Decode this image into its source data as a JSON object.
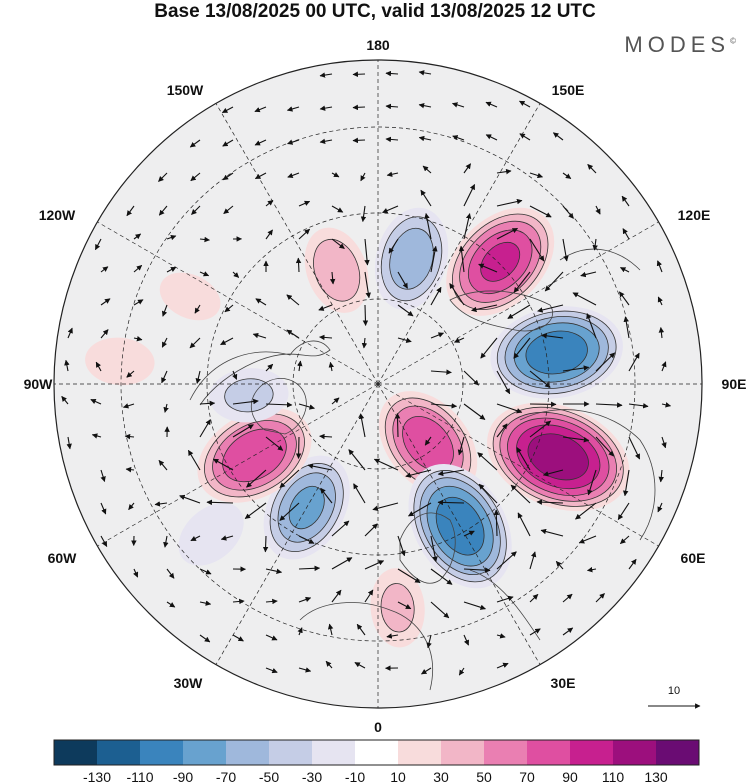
{
  "header": {
    "title": "Base 13/08/2025 00 UTC, valid 13/08/2025 12 UTC",
    "brand": "MODES",
    "brand_mark": "©"
  },
  "map": {
    "projection": "north-polar-stereographic",
    "longitude_labels": {
      "top": "180",
      "bottom": "0",
      "left": "90W",
      "right": "90E",
      "upper_left_1": "150W",
      "upper_left_2": "120W",
      "upper_right_1": "150E",
      "upper_right_2": "120E",
      "lower_left_1": "60W",
      "lower_left_2": "30W",
      "lower_right_1": "60E",
      "lower_right_2": "30E"
    },
    "vector_scale_label": "10"
  },
  "colorbar": {
    "colors": [
      "#0d3a5c",
      "#1c5f91",
      "#3a84bd",
      "#68a2cf",
      "#9fb8dc",
      "#c5cde6",
      "#e6e4f1",
      "#ffffff",
      "#f8dcdc",
      "#f2b6c7",
      "#ea7fb2",
      "#df4fa1",
      "#c7208f",
      "#9c0f7d",
      "#6a0c73"
    ],
    "tick_labels": [
      "-130",
      "-110",
      "-90",
      "-70",
      "-50",
      "-30",
      "-10",
      "10",
      "30",
      "50",
      "70",
      "90",
      "110",
      "130"
    ]
  },
  "anomaly_centers": [
    {
      "sign": "positive",
      "lon": 40,
      "colat": 18,
      "amplitude": 80
    },
    {
      "sign": "negative",
      "lon": 30,
      "colat": 38,
      "amplitude": -100
    },
    {
      "sign": "positive",
      "lon": 68,
      "colat": 45,
      "amplitude": 120
    },
    {
      "sign": "negative",
      "lon": 100,
      "colat": 42,
      "amplitude": -100
    },
    {
      "sign": "positive",
      "lon": 135,
      "colat": 40,
      "amplitude": 90
    },
    {
      "sign": "negative",
      "lon": 165,
      "colat": 30,
      "amplitude": -60
    },
    {
      "sign": "positive",
      "lon": -160,
      "colat": 28,
      "amplitude": 40
    },
    {
      "sign": "negative",
      "lon": -30,
      "colat": 33,
      "amplitude": -70
    },
    {
      "sign": "positive",
      "lon": -60,
      "colat": 33,
      "amplitude": 85
    },
    {
      "sign": "negative",
      "lon": -85,
      "colat": 30,
      "amplitude": -30
    },
    {
      "sign": "negative",
      "lon": -48,
      "colat": 52,
      "amplitude": -25
    },
    {
      "sign": "positive",
      "lon": 5,
      "colat": 52,
      "amplitude": 30
    },
    {
      "sign": "positive",
      "lon": -95,
      "colat": 60,
      "amplitude": 20
    },
    {
      "sign": "positive",
      "lon": -115,
      "colat": 48,
      "amplitude": 15
    }
  ]
}
